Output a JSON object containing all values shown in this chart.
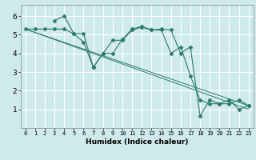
{
  "xlabel": "Humidex (Indice chaleur)",
  "bg_color": "#ceeaea",
  "line_color": "#2d7a6e",
  "grid_color": "#ffffff",
  "xlim": [
    -0.5,
    23.5
  ],
  "ylim": [
    0,
    6.6
  ],
  "yticks": [
    1,
    2,
    3,
    4,
    5,
    6
  ],
  "xticks": [
    0,
    1,
    2,
    3,
    4,
    5,
    6,
    7,
    8,
    9,
    10,
    11,
    12,
    13,
    14,
    15,
    16,
    17,
    18,
    19,
    20,
    21,
    22,
    23
  ],
  "line1": {
    "x": [
      0,
      1,
      2,
      3,
      4,
      5,
      6,
      7,
      8,
      9,
      10,
      11,
      12,
      13,
      14,
      15,
      16,
      17,
      18,
      19,
      20,
      21,
      22,
      23
    ],
    "y": [
      5.3,
      5.3,
      5.3,
      5.3,
      5.3,
      5.05,
      5.05,
      3.25,
      4.0,
      4.7,
      4.7,
      5.25,
      5.4,
      5.25,
      5.25,
      4.0,
      4.35,
      2.8,
      1.5,
      1.3,
      1.3,
      1.5,
      1.0,
      1.2
    ]
  },
  "line2": {
    "x": [
      3,
      4,
      5,
      6,
      7,
      8,
      9,
      10,
      11,
      12,
      13,
      14,
      15,
      16,
      17,
      18,
      19,
      20,
      21,
      22,
      23
    ],
    "y": [
      5.75,
      6.0,
      5.05,
      4.6,
      3.25,
      4.0,
      4.0,
      4.75,
      5.3,
      5.45,
      5.25,
      5.3,
      5.25,
      4.0,
      4.35,
      0.65,
      1.5,
      1.3,
      1.3,
      1.5,
      1.2
    ]
  },
  "diag1": {
    "x": [
      0,
      23
    ],
    "y": [
      5.3,
      1.2
    ]
  },
  "diag2": {
    "x": [
      0,
      23
    ],
    "y": [
      5.3,
      1.0
    ]
  }
}
